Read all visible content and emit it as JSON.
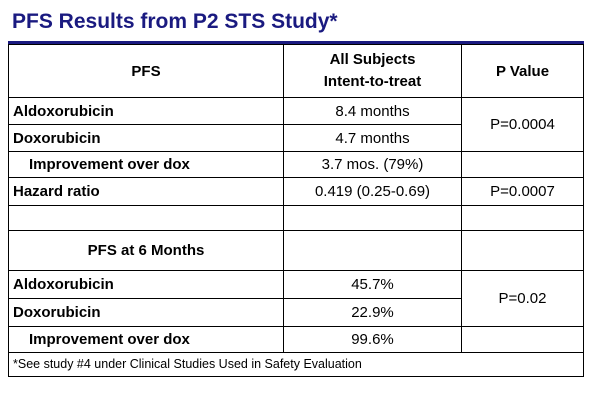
{
  "title": "PFS Results from P2 STS Study*",
  "table": {
    "header": {
      "col1": "PFS",
      "col2_line1": "All Subjects",
      "col2_line2": "Intent-to-treat",
      "col3": "P Value"
    },
    "rows": [
      {
        "label": "Aldoxorubicin",
        "value": "8.4 months"
      },
      {
        "label": "Doxorubicin",
        "value": "4.7 months"
      },
      {
        "label": "Improvement over dox",
        "value": "3.7 mos. (79%)"
      },
      {
        "label": "Hazard ratio",
        "value": "0.419 (0.25-0.69)",
        "p": "P=0.0007"
      }
    ],
    "p_merged_top": "P=0.0004",
    "section2_header": "PFS at 6 Months",
    "rows2": [
      {
        "label": "Aldoxorubicin",
        "value": "45.7%"
      },
      {
        "label": "Doxorubicin",
        "value": "22.9%"
      },
      {
        "label": "Improvement over dox",
        "value": "99.6%"
      }
    ],
    "p_merged_bottom": "P=0.02",
    "footnote": "*See study #4 under Clinical Studies Used in Safety Evaluation"
  }
}
